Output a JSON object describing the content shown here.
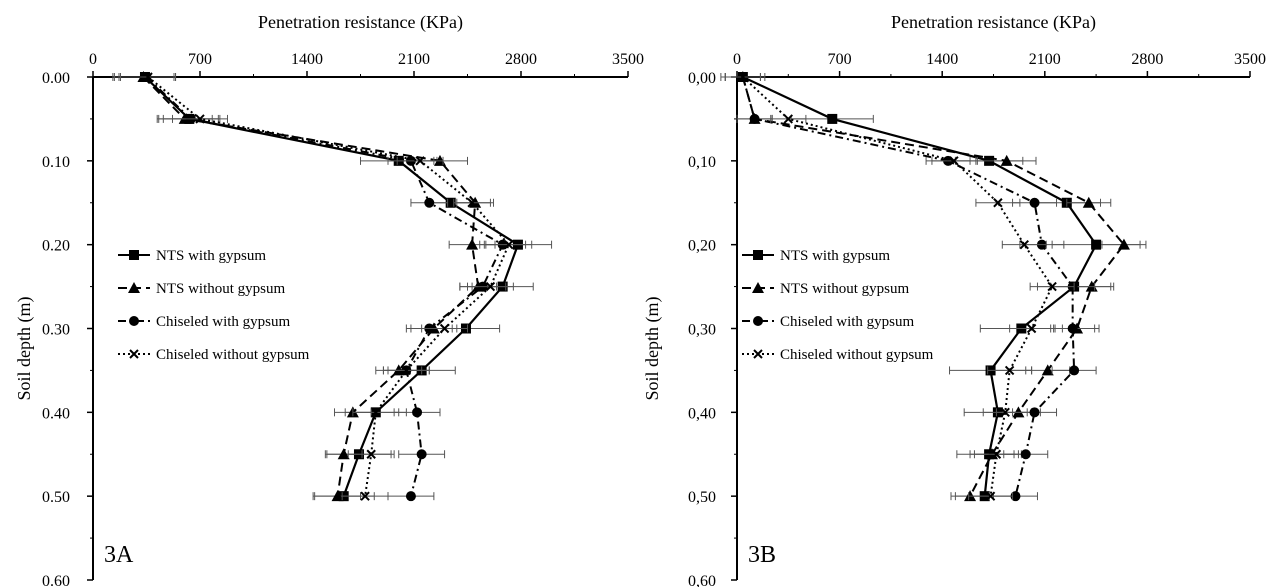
{
  "chart_data": [
    {
      "type": "line",
      "panel_label": "3A",
      "xlabel": "Penetration resistance (KPa)",
      "ylabel": "Soil depth (m)",
      "xlim": [
        0,
        3500
      ],
      "ylim": [
        0,
        0.6
      ],
      "x_orientation": "top",
      "y_inverted": true,
      "x_ticks": [
        "0",
        "700",
        "1400",
        "2100",
        "2800",
        "3500"
      ],
      "y_ticks": [
        "0.00",
        "0.10",
        "0.20",
        "0.30",
        "0.40",
        "0.50",
        "0.60"
      ],
      "legend_position": "middle-left",
      "grid": false,
      "series": [
        {
          "name": "NTS with gypsum",
          "marker": "square",
          "dash": "solid",
          "depth": [
            0.0,
            0.05,
            0.1,
            0.15,
            0.2,
            0.25,
            0.3,
            0.35,
            0.4,
            0.45,
            0.5
          ],
          "values": [
            340,
            630,
            2000,
            2340,
            2780,
            2680,
            2440,
            2150,
            1850,
            1740,
            1640
          ],
          "error": [
            200,
            200,
            250,
            150,
            220,
            200,
            220,
            220,
            200,
            210,
            200
          ]
        },
        {
          "name": "NTS without gypsum",
          "marker": "triangle",
          "dash": "dashed",
          "depth": [
            0.0,
            0.05,
            0.1,
            0.15,
            0.2,
            0.25,
            0.3,
            0.35,
            0.4,
            0.45,
            0.5
          ],
          "values": [
            330,
            600,
            2270,
            2500,
            2480,
            2520,
            2230,
            2000,
            1700,
            1640,
            1600
          ],
          "error": [
            200,
            180,
            180,
            120,
            150,
            120,
            150,
            150,
            120,
            120,
            150
          ]
        },
        {
          "name": "Chiseled with gypsum",
          "marker": "circle",
          "dash": "dashdot",
          "depth": [
            0.0,
            0.05,
            0.1,
            0.15,
            0.2,
            0.25,
            0.3,
            0.35,
            0.4,
            0.45,
            0.5
          ],
          "values": [
            350,
            640,
            2080,
            2200,
            2680,
            2550,
            2200,
            2050,
            2120,
            2150,
            2080
          ],
          "error": [
            180,
            180,
            150,
            120,
            150,
            150,
            150,
            150,
            150,
            150,
            150
          ]
        },
        {
          "name": "Chiseled without gypsum",
          "marker": "x",
          "dash": "dotted",
          "depth": [
            0.0,
            0.05,
            0.1,
            0.15,
            0.2,
            0.25,
            0.3,
            0.35,
            0.4,
            0.45,
            0.5
          ],
          "values": [
            360,
            700,
            2140,
            2480,
            2720,
            2600,
            2300,
            2050,
            1850,
            1820,
            1780
          ],
          "error": [
            180,
            180,
            150,
            120,
            150,
            150,
            150,
            150,
            150,
            150,
            150
          ]
        }
      ]
    },
    {
      "type": "line",
      "panel_label": "3B",
      "xlabel": "Penetration resistance (KPa)",
      "ylabel": "Soil depth (m)",
      "xlim": [
        0,
        3500
      ],
      "ylim": [
        0,
        0.6
      ],
      "x_orientation": "top",
      "y_inverted": true,
      "x_ticks": [
        "0",
        "700",
        "1400",
        "2100",
        "2800",
        "3500"
      ],
      "y_ticks": [
        "0,00",
        "0,10",
        "0,20",
        "0,30",
        "0,40",
        "0,50",
        "0,60"
      ],
      "legend_position": "middle-left",
      "grid": false,
      "series": [
        {
          "name": "NTS with gypsum",
          "marker": "square",
          "dash": "solid",
          "depth": [
            0.0,
            0.05,
            0.1,
            0.15,
            0.2,
            0.25,
            0.3,
            0.35,
            0.4,
            0.45,
            0.5
          ],
          "values": [
            40,
            650,
            1720,
            2250,
            2450,
            2300,
            1940,
            1730,
            1780,
            1720,
            1690
          ],
          "error": [
            150,
            280,
            230,
            230,
            300,
            250,
            280,
            280,
            230,
            220,
            200
          ]
        },
        {
          "name": "NTS without gypsum",
          "marker": "triangle",
          "dash": "dashed",
          "depth": [
            0.0,
            0.05,
            0.1,
            0.15,
            0.2,
            0.25,
            0.3,
            0.35,
            0.4,
            0.45,
            0.5
          ],
          "values": [
            40,
            120,
            1840,
            2400,
            2640,
            2420,
            2320,
            2120,
            1920,
            1740,
            1590
          ],
          "error": [
            120,
            120,
            200,
            150,
            150,
            150,
            150,
            150,
            150,
            150,
            130
          ]
        },
        {
          "name": "Chiseled with gypsum",
          "marker": "circle",
          "dash": "dashdot",
          "depth": [
            0.0,
            0.05,
            0.1,
            0.15,
            0.2,
            0.25,
            0.3,
            0.35,
            0.4,
            0.45,
            0.5
          ],
          "values": [
            40,
            120,
            1440,
            2030,
            2080,
            2290,
            2290,
            2300,
            2030,
            1970,
            1900
          ],
          "error": [
            120,
            120,
            150,
            150,
            150,
            150,
            150,
            150,
            150,
            150,
            150
          ]
        },
        {
          "name": "Chiseled without gypsum",
          "marker": "x",
          "dash": "dotted",
          "depth": [
            0.0,
            0.05,
            0.1,
            0.15,
            0.2,
            0.25,
            0.3,
            0.35,
            0.4,
            0.45,
            0.5
          ],
          "values": [
            40,
            350,
            1480,
            1780,
            1960,
            2150,
            2010,
            1860,
            1830,
            1770,
            1730
          ],
          "error": [
            120,
            120,
            150,
            150,
            150,
            150,
            150,
            150,
            150,
            150,
            150
          ]
        }
      ]
    }
  ]
}
